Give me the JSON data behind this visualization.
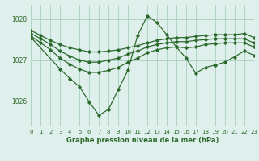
{
  "bg_color": "#dff0ec",
  "grid_color": "#aacfbf",
  "line_color": "#2d6a2d",
  "title": "Graphe pression niveau de la mer (hPa)",
  "xlim": [
    0,
    23
  ],
  "ylim": [
    1025.4,
    1028.35
  ],
  "yticks": [
    1026,
    1027,
    1028
  ],
  "xticks": [
    0,
    1,
    2,
    3,
    4,
    5,
    6,
    7,
    8,
    9,
    10,
    11,
    12,
    13,
    14,
    15,
    16,
    17,
    18,
    19,
    20,
    21,
    22,
    23
  ],
  "series": [
    {
      "x": [
        0,
        1,
        2,
        3,
        4,
        5,
        6,
        7,
        8,
        9,
        10,
        11,
        12,
        13,
        14,
        15,
        16,
        17,
        18,
        19,
        20,
        21,
        22,
        23
      ],
      "y": [
        1027.72,
        1027.6,
        1027.48,
        1027.38,
        1027.3,
        1027.25,
        1027.2,
        1027.2,
        1027.22,
        1027.25,
        1027.3,
        1027.35,
        1027.42,
        1027.48,
        1027.52,
        1027.55,
        1027.55,
        1027.58,
        1027.6,
        1027.62,
        1027.62,
        1027.62,
        1027.65,
        1027.55
      ]
    },
    {
      "x": [
        0,
        1,
        2,
        3,
        4,
        5,
        6,
        7,
        8,
        9,
        10,
        11,
        12,
        13,
        14,
        15,
        16,
        17,
        18,
        19,
        20,
        21,
        22,
        23
      ],
      "y": [
        1027.65,
        1027.52,
        1027.38,
        1027.22,
        1027.1,
        1027.0,
        1026.95,
        1026.95,
        1027.0,
        1027.05,
        1027.15,
        1027.22,
        1027.32,
        1027.38,
        1027.42,
        1027.45,
        1027.45,
        1027.48,
        1027.5,
        1027.52,
        1027.52,
        1027.52,
        1027.52,
        1027.42
      ]
    },
    {
      "x": [
        0,
        1,
        2,
        3,
        4,
        5,
        6,
        7,
        8,
        9,
        10,
        11,
        12,
        13,
        14,
        15,
        16,
        17,
        18,
        19,
        20,
        21,
        22,
        23
      ],
      "y": [
        1027.58,
        1027.42,
        1027.25,
        1027.05,
        1026.9,
        1026.78,
        1026.7,
        1026.7,
        1026.75,
        1026.82,
        1026.95,
        1027.05,
        1027.18,
        1027.25,
        1027.3,
        1027.32,
        1027.3,
        1027.32,
        1027.38,
        1027.4,
        1027.42,
        1027.42,
        1027.42,
        1027.32
      ]
    },
    {
      "x": [
        0,
        3,
        4,
        5,
        6,
        7,
        8,
        9,
        10,
        11,
        12,
        13,
        14,
        15,
        16,
        17,
        18,
        19,
        20,
        21,
        22,
        23
      ],
      "y": [
        1027.55,
        1026.78,
        1026.55,
        1026.35,
        1025.98,
        1025.65,
        1025.8,
        1026.28,
        1026.75,
        1027.6,
        1028.08,
        1027.92,
        1027.62,
        1027.32,
        1027.05,
        1026.68,
        1026.82,
        1026.88,
        1026.95,
        1027.08,
        1027.22,
        1027.12
      ]
    }
  ]
}
